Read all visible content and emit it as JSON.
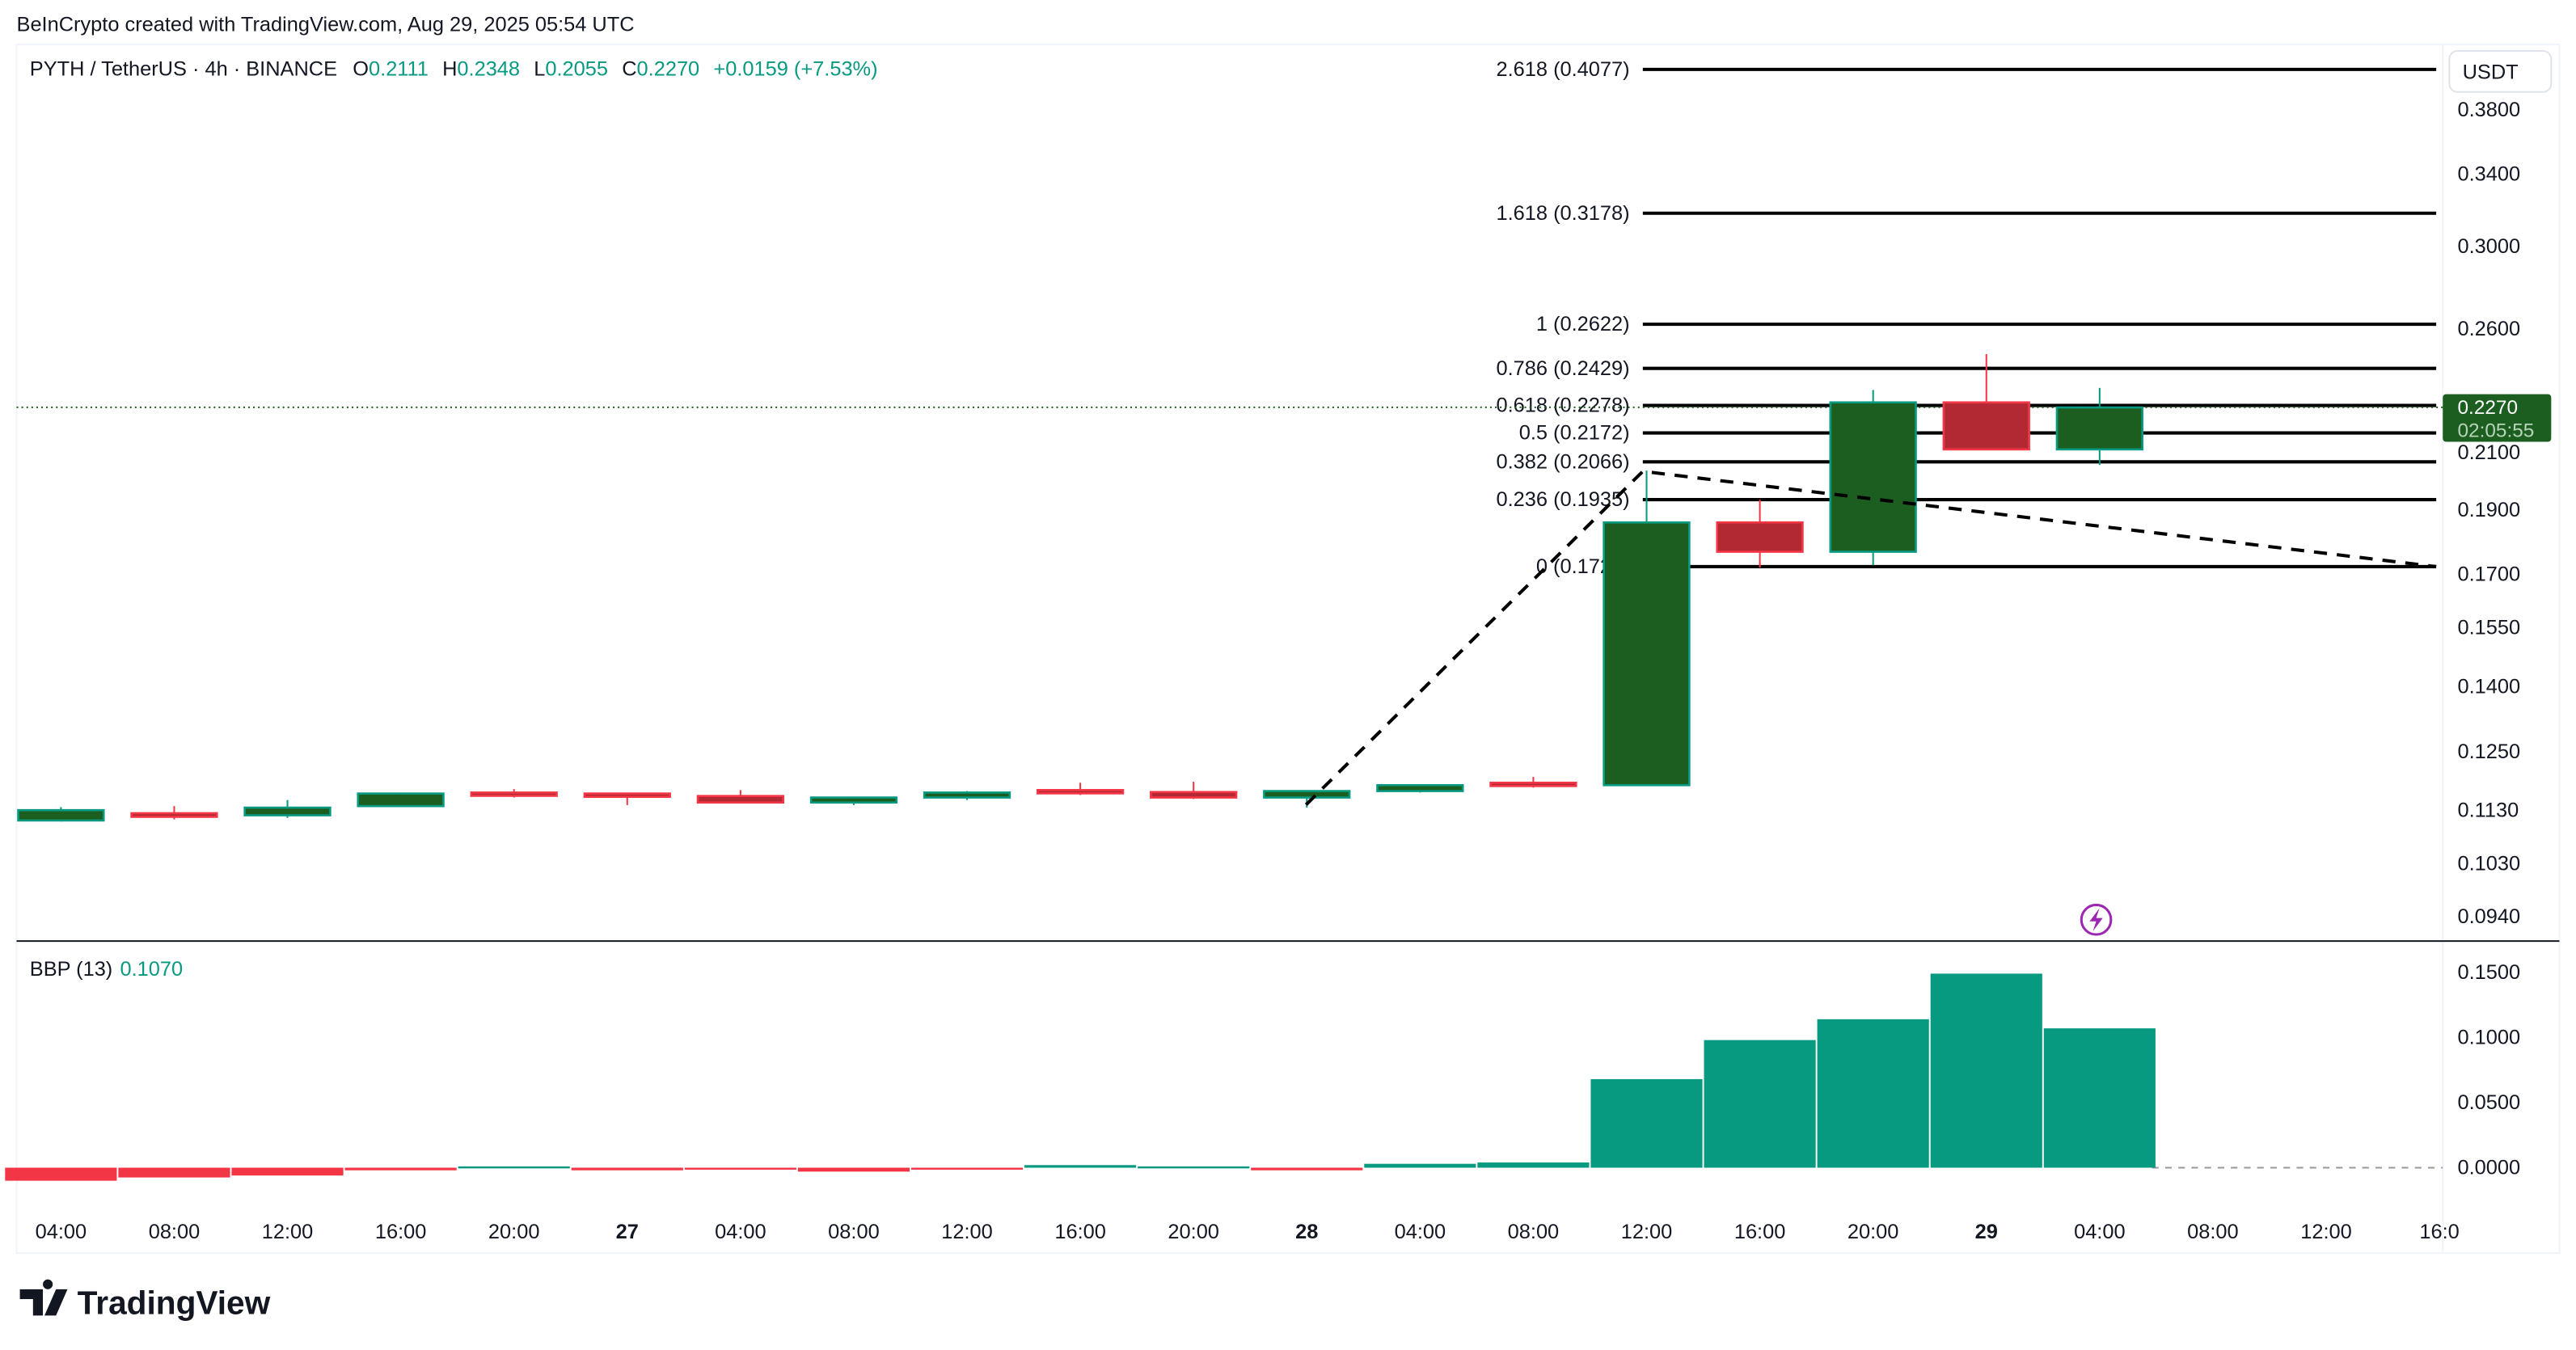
{
  "attribution": "BeInCrypto created with TradingView.com, Aug 29, 2025 05:54 UTC",
  "legend": {
    "symbol": "PYTH / TetherUS · 4h · BINANCE",
    "o_label": "O",
    "o": "0.2111",
    "h_label": "H",
    "h": "0.2348",
    "l_label": "L",
    "l": "0.2055",
    "c_label": "C",
    "c": "0.2270",
    "change": "+0.0159 (+7.53%)"
  },
  "currency": "USDT",
  "last_price": {
    "value": "0.2270",
    "countdown": "02:05:55",
    "color": "#1b5e20"
  },
  "colors": {
    "up_body": "#1b5e20",
    "up_border": "#089981",
    "down_body": "#b22833",
    "down_border": "#f23645",
    "bbp_pos": "#089981",
    "bbp_neg": "#f23645"
  },
  "brand": "TradingView",
  "indicator": {
    "name": "BBP (13)",
    "value": "0.1070"
  },
  "chart_data": [
    {
      "type": "candlestick",
      "scale": "log",
      "ylim": [
        0.09,
        0.42
      ],
      "y_ticks": [
        "0.3800",
        "0.3400",
        "0.3000",
        "0.2600",
        "0.2100",
        "0.1900",
        "0.1700",
        "0.1550",
        "0.1400",
        "0.1250",
        "0.1130",
        "0.1030",
        "0.0940"
      ],
      "x_ticks": [
        "04:00",
        "08:00",
        "12:00",
        "16:00",
        "20:00",
        "27",
        "04:00",
        "08:00",
        "12:00",
        "16:00",
        "20:00",
        "28",
        "04:00",
        "08:00",
        "12:00",
        "16:00",
        "20:00",
        "29",
        "04:00",
        "08:00",
        "12:00",
        "16:0"
      ],
      "candles": [
        {
          "o": 0.111,
          "h": 0.1136,
          "l": 0.1108,
          "c": 0.113
        },
        {
          "o": 0.1124,
          "h": 0.1138,
          "l": 0.1112,
          "c": 0.1117
        },
        {
          "o": 0.112,
          "h": 0.115,
          "l": 0.1115,
          "c": 0.1135
        },
        {
          "o": 0.1138,
          "h": 0.1165,
          "l": 0.1138,
          "c": 0.1163
        },
        {
          "o": 0.1165,
          "h": 0.1172,
          "l": 0.1155,
          "c": 0.1162
        },
        {
          "o": 0.1163,
          "h": 0.1163,
          "l": 0.114,
          "c": 0.116
        },
        {
          "o": 0.1158,
          "h": 0.117,
          "l": 0.1143,
          "c": 0.1145
        },
        {
          "o": 0.1145,
          "h": 0.1157,
          "l": 0.114,
          "c": 0.1155
        },
        {
          "o": 0.1155,
          "h": 0.1168,
          "l": 0.115,
          "c": 0.1165
        },
        {
          "o": 0.117,
          "h": 0.1185,
          "l": 0.116,
          "c": 0.1167
        },
        {
          "o": 0.1166,
          "h": 0.1187,
          "l": 0.1152,
          "c": 0.1155
        },
        {
          "o": 0.1155,
          "h": 0.117,
          "l": 0.1135,
          "c": 0.1168
        },
        {
          "o": 0.1168,
          "h": 0.118,
          "l": 0.1165,
          "c": 0.118
        },
        {
          "o": 0.1185,
          "h": 0.1197,
          "l": 0.1175,
          "c": 0.118
        },
        {
          "o": 0.118,
          "h": 0.2035,
          "l": 0.1178,
          "c": 0.186
        },
        {
          "o": 0.186,
          "h": 0.1935,
          "l": 0.172,
          "c": 0.1768
        },
        {
          "o": 0.1768,
          "h": 0.234,
          "l": 0.1727,
          "c": 0.229
        },
        {
          "o": 0.229,
          "h": 0.249,
          "l": 0.2111,
          "c": 0.2111
        },
        {
          "o": 0.2111,
          "h": 0.2348,
          "l": 0.2055,
          "c": 0.227
        }
      ],
      "fib_levels": [
        {
          "label": "2.618 (0.4077)",
          "price": 0.4077
        },
        {
          "label": "1.618 (0.3178)",
          "price": 0.3178
        },
        {
          "label": "1 (0.2622)",
          "price": 0.2622
        },
        {
          "label": "0.786 (0.2429)",
          "price": 0.2429
        },
        {
          "label": "0.618 (0.2278)",
          "price": 0.2278
        },
        {
          "label": "0.5 (0.2172)",
          "price": 0.2172
        },
        {
          "label": "0.382 (0.2066)",
          "price": 0.2066
        },
        {
          "label": "0.236 (0.1935)",
          "price": 0.1935
        },
        {
          "label": "0 (0.1723)",
          "price": 0.1723
        }
      ]
    },
    {
      "type": "bar",
      "name": "BBP (13)",
      "ylim": [
        -0.015,
        0.16
      ],
      "y_ticks": [
        "0.1500",
        "0.1000",
        "0.0500",
        "0.0000"
      ],
      "values": [
        -0.01,
        -0.0075,
        -0.006,
        -0.002,
        0.001,
        -0.002,
        -0.001,
        -0.003,
        -0.001,
        0.002,
        0.001,
        -0.002,
        0.003,
        0.004,
        0.068,
        0.098,
        0.114,
        0.149,
        0.107
      ]
    }
  ]
}
